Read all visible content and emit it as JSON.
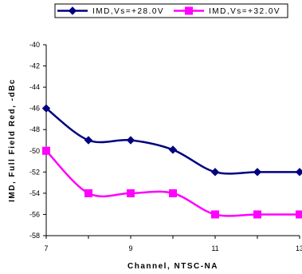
{
  "chart_data": {
    "type": "line",
    "xlabel": "Channel, NTSC-NA",
    "ylabel": "IMD, Full Field Red, -dBc",
    "xlim": [
      7,
      13
    ],
    "ylim": [
      -58,
      -40
    ],
    "xticks": [
      7,
      9,
      11,
      13
    ],
    "xtick_labels": [
      "7",
      "9",
      "11",
      "13"
    ],
    "yticks": [
      -58,
      -56,
      -54,
      -52,
      -50,
      -48,
      -46,
      -44,
      -42,
      -40
    ],
    "ytick_labels": [
      "-58",
      "-56",
      "-54",
      "-52",
      "-50",
      "-48",
      "-46",
      "-44",
      "-42",
      "-40"
    ],
    "grid": false,
    "legend_position": "top",
    "series": [
      {
        "name": "IMD,Vs=+28.0V",
        "color": "#000080",
        "marker": "diamond",
        "x": [
          7,
          8,
          9,
          10,
          11,
          12,
          13
        ],
        "y": [
          -46.0,
          -49.0,
          -49.0,
          -49.9,
          -52.0,
          -52.0,
          -52.0
        ]
      },
      {
        "name": "IMD,Vs=+32.0V",
        "color": "#ff00ff",
        "marker": "square",
        "x": [
          7,
          8,
          9,
          10,
          11,
          12,
          13
        ],
        "y": [
          -50.0,
          -54.0,
          -54.0,
          -54.0,
          -56.0,
          -56.0,
          -56.0
        ]
      }
    ]
  }
}
